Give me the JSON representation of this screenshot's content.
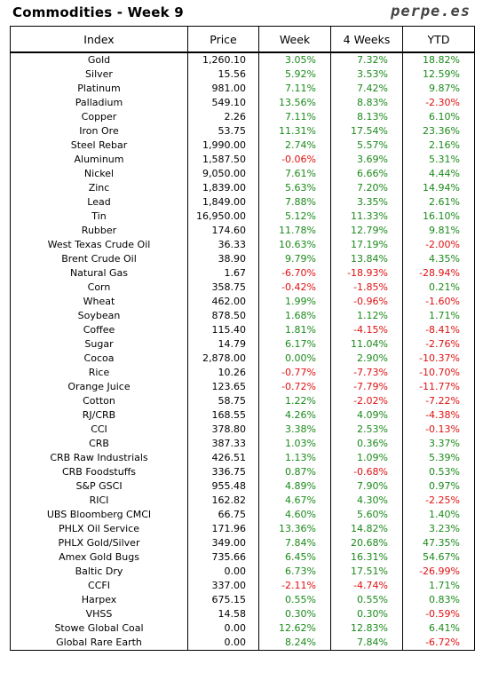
{
  "header": {
    "title": "Commodities - Week 9",
    "brand": "perpe.es"
  },
  "colors": {
    "positive": "#1a8a1a",
    "negative": "#e01010"
  },
  "table": {
    "columns": [
      "Index",
      "Price",
      "Week",
      "4 Weeks",
      "YTD"
    ],
    "rows": [
      [
        "Gold",
        "1,260.10",
        "3.05%",
        "7.32%",
        "18.82%"
      ],
      [
        "Silver",
        "15.56",
        "5.92%",
        "3.53%",
        "12.59%"
      ],
      [
        "Platinum",
        "981.00",
        "7.11%",
        "7.42%",
        "9.87%"
      ],
      [
        "Palladium",
        "549.10",
        "13.56%",
        "8.83%",
        "-2.30%"
      ],
      [
        "Copper",
        "2.26",
        "7.11%",
        "8.13%",
        "6.10%"
      ],
      [
        "Iron Ore",
        "53.75",
        "11.31%",
        "17.54%",
        "23.36%"
      ],
      [
        "Steel Rebar",
        "1,990.00",
        "2.74%",
        "5.57%",
        "2.16%"
      ],
      [
        "Aluminum",
        "1,587.50",
        "-0.06%",
        "3.69%",
        "5.31%"
      ],
      [
        "Nickel",
        "9,050.00",
        "7.61%",
        "6.66%",
        "4.44%"
      ],
      [
        "Zinc",
        "1,839.00",
        "5.63%",
        "7.20%",
        "14.94%"
      ],
      [
        "Lead",
        "1,849.00",
        "7.88%",
        "3.35%",
        "2.61%"
      ],
      [
        "Tin",
        "16,950.00",
        "5.12%",
        "11.33%",
        "16.10%"
      ],
      [
        "Rubber",
        "174.60",
        "11.78%",
        "12.79%",
        "9.81%"
      ],
      [
        "West Texas Crude Oil",
        "36.33",
        "10.63%",
        "17.19%",
        "-2.00%"
      ],
      [
        "Brent Crude Oil",
        "38.90",
        "9.79%",
        "13.84%",
        "4.35%"
      ],
      [
        "Natural Gas",
        "1.67",
        "-6.70%",
        "-18.93%",
        "-28.94%"
      ],
      [
        "Corn",
        "358.75",
        "-0.42%",
        "-1.85%",
        "0.21%"
      ],
      [
        "Wheat",
        "462.00",
        "1.99%",
        "-0.96%",
        "-1.60%"
      ],
      [
        "Soybean",
        "878.50",
        "1.68%",
        "1.12%",
        "1.71%"
      ],
      [
        "Coffee",
        "115.40",
        "1.81%",
        "-4.15%",
        "-8.41%"
      ],
      [
        "Sugar",
        "14.79",
        "6.17%",
        "11.04%",
        "-2.76%"
      ],
      [
        "Cocoa",
        "2,878.00",
        "0.00%",
        "2.90%",
        "-10.37%"
      ],
      [
        "Rice",
        "10.26",
        "-0.77%",
        "-7.73%",
        "-10.70%"
      ],
      [
        "Orange Juice",
        "123.65",
        "-0.72%",
        "-7.79%",
        "-11.77%"
      ],
      [
        "Cotton",
        "58.75",
        "1.22%",
        "-2.02%",
        "-7.22%"
      ],
      [
        "RJ/CRB",
        "168.55",
        "4.26%",
        "4.09%",
        "-4.38%"
      ],
      [
        "CCI",
        "378.80",
        "3.38%",
        "2.53%",
        "-0.13%"
      ],
      [
        "CRB",
        "387.33",
        "1.03%",
        "0.36%",
        "3.37%"
      ],
      [
        "CRB Raw Industrials",
        "426.51",
        "1.13%",
        "1.09%",
        "5.39%"
      ],
      [
        "CRB Foodstuffs",
        "336.75",
        "0.87%",
        "-0.68%",
        "0.53%"
      ],
      [
        "S&P GSCI",
        "955.48",
        "4.89%",
        "7.90%",
        "0.97%"
      ],
      [
        "RICI",
        "162.82",
        "4.67%",
        "4.30%",
        "-2.25%"
      ],
      [
        "UBS Bloomberg CMCI",
        "66.75",
        "4.60%",
        "5.60%",
        "1.40%"
      ],
      [
        "PHLX Oil Service",
        "171.96",
        "13.36%",
        "14.82%",
        "3.23%"
      ],
      [
        "PHLX Gold/Silver",
        "349.00",
        "7.84%",
        "20.68%",
        "47.35%"
      ],
      [
        "Amex Gold Bugs",
        "735.66",
        "6.45%",
        "16.31%",
        "54.67%"
      ],
      [
        "Baltic Dry",
        "0.00",
        "6.73%",
        "17.51%",
        "-26.99%"
      ],
      [
        "CCFI",
        "337.00",
        "-2.11%",
        "-4.74%",
        "1.71%"
      ],
      [
        "Harpex",
        "675.15",
        "0.55%",
        "0.55%",
        "0.83%"
      ],
      [
        "VHSS",
        "14.58",
        "0.30%",
        "0.30%",
        "-0.59%"
      ],
      [
        "Stowe Global Coal",
        "0.00",
        "12.62%",
        "12.83%",
        "6.41%"
      ],
      [
        "Global Rare Earth",
        "0.00",
        "8.24%",
        "7.84%",
        "-6.72%"
      ]
    ]
  }
}
